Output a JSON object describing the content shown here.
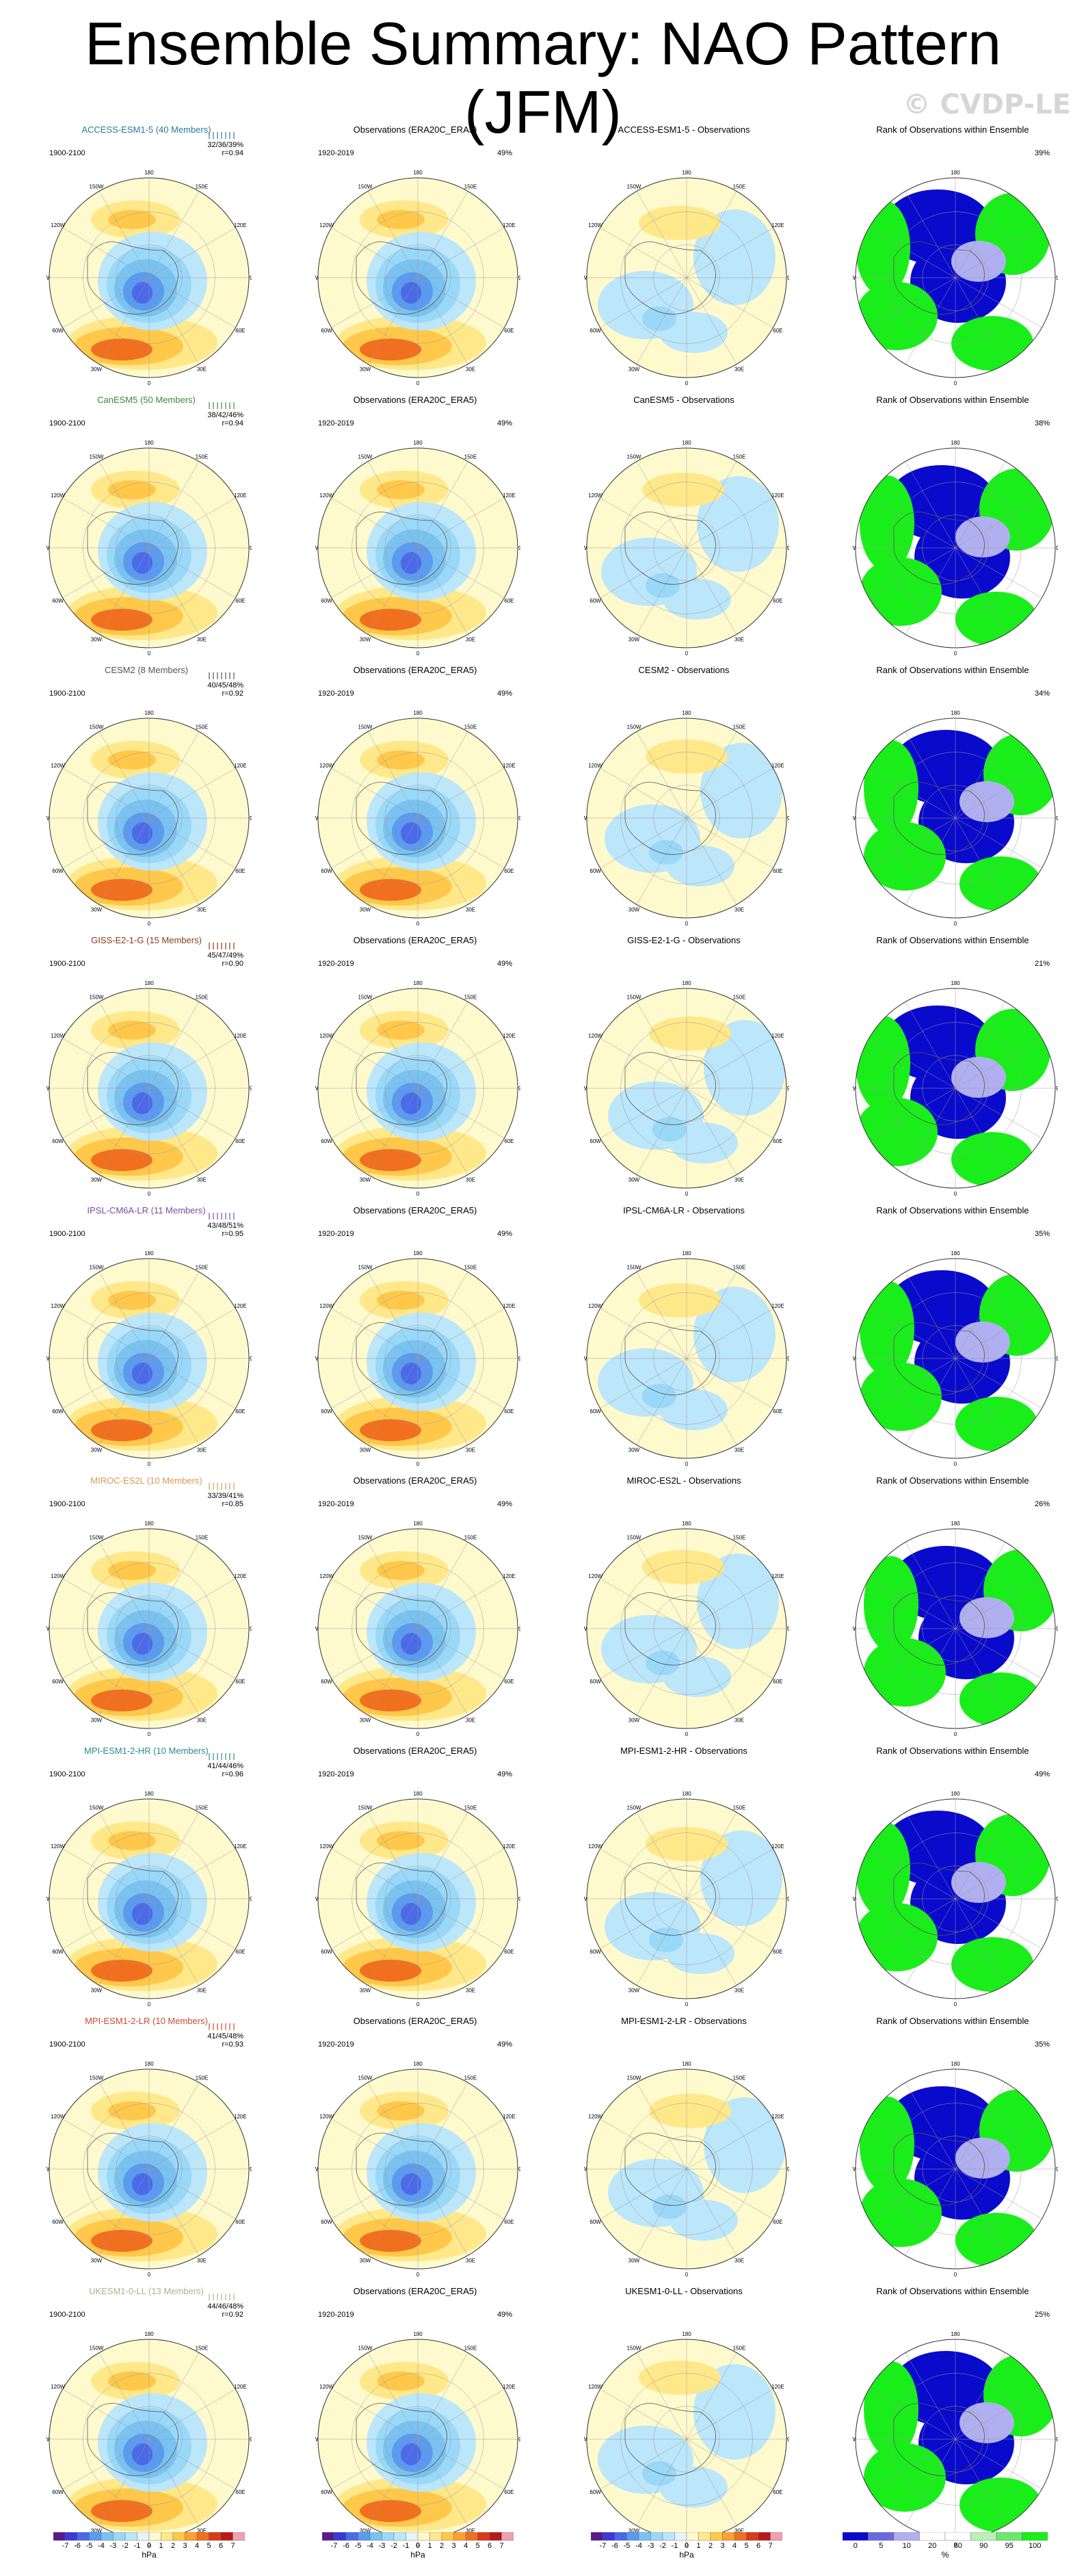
{
  "title": "Ensemble Summary: NAO Pattern (JFM)",
  "credit": "© CVDP-LE",
  "column_titles": {
    "obs": "Observations (ERA20C_ERA5)",
    "rank": "Rank of Observations within Ensemble"
  },
  "longitude_labels": [
    "180",
    "150E",
    "120E",
    "90E",
    "60E",
    "30E",
    "0",
    "30W",
    "60W",
    "90W",
    "120W",
    "150W"
  ],
  "rows": [
    {
      "model": "ACCESS-ESM1-5 (40 Members)",
      "color": "#2a7a9a",
      "period": "1900-2100",
      "stats": "32/36/39%",
      "r": "r=0.94",
      "obs_period": "1920-2019",
      "obs_pct": "49%",
      "diff_title": "ACCESS-ESM1-5 - Observations",
      "rank_pct": "39%"
    },
    {
      "model": "CanESM5 (50 Members)",
      "color": "#3a8a3a",
      "period": "1900-2100",
      "stats": "38/42/46%",
      "r": "r=0.94",
      "obs_period": "1920-2019",
      "obs_pct": "49%",
      "diff_title": "CanESM5 - Observations",
      "rank_pct": "38%"
    },
    {
      "model": "CESM2 (8 Members)",
      "color": "#555555",
      "period": "1900-2100",
      "stats": "40/45/48%",
      "r": "r=0.92",
      "obs_period": "1920-2019",
      "obs_pct": "49%",
      "diff_title": "CESM2 - Observations",
      "rank_pct": "34%"
    },
    {
      "model": "GISS-E2-1-G (15 Members)",
      "color": "#8b3a1a",
      "period": "1900-2100",
      "stats": "45/47/49%",
      "r": "r=0.90",
      "obs_period": "1920-2019",
      "obs_pct": "49%",
      "diff_title": "GISS-E2-1-G - Observations",
      "rank_pct": "21%"
    },
    {
      "model": "IPSL-CM6A-LR (11 Members)",
      "color": "#7a4aa8",
      "period": "1900-2100",
      "stats": "43/48/51%",
      "r": "r=0.95",
      "obs_period": "1920-2019",
      "obs_pct": "49%",
      "diff_title": "IPSL-CM6A-LR - Observations",
      "rank_pct": "35%"
    },
    {
      "model": "MIROC-ES2L (10 Members)",
      "color": "#d79a55",
      "period": "1900-2100",
      "stats": "33/39/41%",
      "r": "r=0.85",
      "obs_period": "1920-2019",
      "obs_pct": "49%",
      "diff_title": "MIROC-ES2L - Observations",
      "rank_pct": "26%"
    },
    {
      "model": "MPI-ESM1-2-HR (10 Members)",
      "color": "#2a8a8a",
      "period": "1900-2100",
      "stats": "41/44/46%",
      "r": "r=0.96",
      "obs_period": "1920-2019",
      "obs_pct": "49%",
      "diff_title": "MPI-ESM1-2-HR - Observations",
      "rank_pct": "49%"
    },
    {
      "model": "MPI-ESM1-2-LR (10 Members)",
      "color": "#d04a2a",
      "period": "1900-2100",
      "stats": "41/45/48%",
      "r": "r=0.93",
      "obs_period": "1920-2019",
      "obs_pct": "49%",
      "diff_title": "MPI-ESM1-2-LR - Observations",
      "rank_pct": "35%"
    },
    {
      "model": "UKESM1-0-LL (13 Members)",
      "color": "#a8b88a",
      "period": "1900-2100",
      "stats": "44/46/48%",
      "r": "r=0.92",
      "obs_period": "1920-2019",
      "obs_pct": "49%",
      "diff_title": "UKESM1-0-LL - Observations",
      "rank_pct": "25%"
    }
  ],
  "colorbars": [
    {
      "labels": [
        "-7",
        "-6",
        "-5",
        "-4",
        "-3",
        "-2",
        "-1",
        "0",
        "1",
        "2",
        "3",
        "4",
        "5",
        "6",
        "7"
      ],
      "unit": "hPa",
      "colors": [
        "#5a1a8a",
        "#3a3ad8",
        "#4a6ae8",
        "#5a9af0",
        "#7ac2f0",
        "#9ad8f8",
        "#bce6fa",
        "#e6f4fa",
        "#fffacd",
        "#ffe88a",
        "#ffc84a",
        "#ffa030",
        "#f07020",
        "#d83a1a",
        "#b81a1a",
        "#f0a0b0"
      ]
    },
    {
      "labels": [
        "-7",
        "-6",
        "-5",
        "-4",
        "-3",
        "-2",
        "-1",
        "0",
        "1",
        "2",
        "3",
        "4",
        "5",
        "6",
        "7"
      ],
      "unit": "hPa",
      "colors": [
        "#5a1a8a",
        "#3a3ad8",
        "#4a6ae8",
        "#5a9af0",
        "#7ac2f0",
        "#9ad8f8",
        "#bce6fa",
        "#e6f4fa",
        "#fffacd",
        "#ffe88a",
        "#ffc84a",
        "#ffa030",
        "#f07020",
        "#d83a1a",
        "#b81a1a",
        "#f0a0b0"
      ]
    },
    {
      "labels": [
        "-7",
        "-6",
        "-5",
        "-4",
        "-3",
        "-2",
        "-1",
        "0",
        "1",
        "2",
        "3",
        "4",
        "5",
        "6",
        "7"
      ],
      "unit": "hPa",
      "colors": [
        "#5a1a8a",
        "#3a3ad8",
        "#4a6ae8",
        "#5a9af0",
        "#7ac2f0",
        "#9ad8f8",
        "#bce6fa",
        "#e6f4fa",
        "#fffacd",
        "#ffe88a",
        "#ffc84a",
        "#ffa030",
        "#f07020",
        "#d83a1a",
        "#b81a1a",
        "#f0a0b0"
      ]
    },
    {
      "labels": [
        "0",
        "5",
        "10",
        "20",
        "80",
        "90",
        "95",
        "100"
      ],
      "unit": "%",
      "colors": [
        "#0a0acc",
        "#6a6ae0",
        "#b0b0f0",
        "#ffffff",
        "#ffffff",
        "#b8f0b8",
        "#6ae86a",
        "#1aee1a"
      ]
    }
  ]
}
